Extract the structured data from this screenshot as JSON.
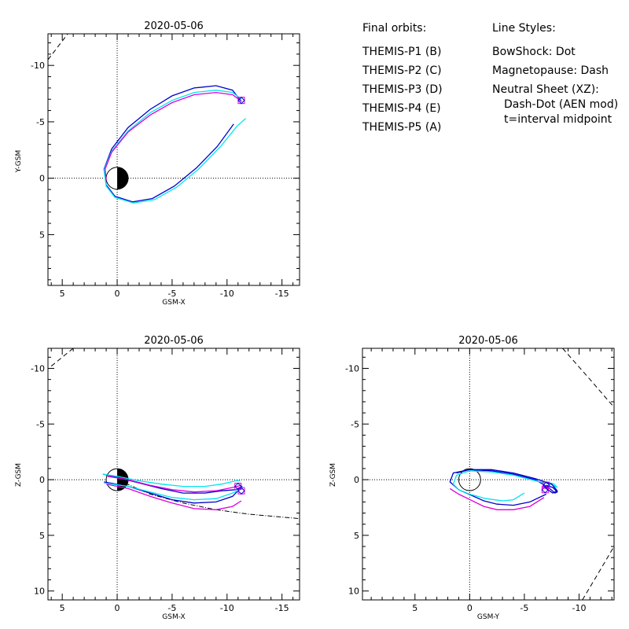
{
  "legend": {
    "orbits_title": "Final orbits:",
    "probes": [
      {
        "label": "THEMIS-P1 (B)",
        "color": "#ff0000"
      },
      {
        "label": "THEMIS-P2 (C)",
        "color": "#00dd00"
      },
      {
        "label": "THEMIS-P3 (D)",
        "color": "#00e5ee"
      },
      {
        "label": "THEMIS-P4 (E)",
        "color": "#0000cc"
      },
      {
        "label": "THEMIS-P5 (A)",
        "color": "#dd00dd"
      }
    ],
    "styles_title": "Line Styles:",
    "styles": [
      "BowShock: Dot",
      "Magnetopause: Dash",
      "Neutral Sheet (XZ):",
      "Dash-Dot (AEN mod)",
      "t=interval midpoint"
    ]
  },
  "chart_data": [
    {
      "type": "line",
      "title": "2020-05-06",
      "xlabel": "GSM-X",
      "ylabel": "Y-GSM",
      "xlim": [
        6.3,
        -16.6
      ],
      "ylim": [
        -12.8,
        9.5
      ],
      "xticks": [
        5,
        0,
        -5,
        -10,
        -15
      ],
      "xticklabels": [
        "5",
        "0",
        "-5",
        "-10",
        "-15"
      ],
      "yticks": [
        -10,
        -5,
        0,
        5
      ],
      "yticklabels": [
        "-10",
        "-5",
        "0",
        "5"
      ],
      "earth": "half-dark",
      "series": [
        {
          "color": "#0000cc",
          "points": [
            [
              -11.3,
              -6.8
            ],
            [
              -10.5,
              -7.8
            ],
            [
              -9,
              -8.2
            ],
            [
              -7,
              -8.0
            ],
            [
              -5,
              -7.3
            ],
            [
              -3,
              -6.1
            ],
            [
              -1,
              -4.5
            ],
            [
              0.5,
              -2.6
            ],
            [
              1.2,
              -0.8
            ],
            [
              1.0,
              0.6
            ],
            [
              0.2,
              1.6
            ],
            [
              -1.4,
              2.1
            ],
            [
              -3.2,
              1.8
            ],
            [
              -5.2,
              0.7
            ],
            [
              -7.2,
              -0.9
            ],
            [
              -9.1,
              -2.8
            ],
            [
              -10.6,
              -4.8
            ]
          ]
        },
        {
          "color": "#00e5ee",
          "points": [
            [
              -11.3,
              -7.0
            ],
            [
              -10.5,
              -7.6
            ],
            [
              -9,
              -7.8
            ],
            [
              -7,
              -7.6
            ],
            [
              -5,
              -6.9
            ],
            [
              -3,
              -5.8
            ],
            [
              -1,
              -4.2
            ],
            [
              0.5,
              -2.4
            ],
            [
              1.2,
              -0.7
            ],
            [
              1.0,
              0.7
            ],
            [
              0.2,
              1.7
            ],
            [
              -1.5,
              2.2
            ],
            [
              -3.4,
              1.9
            ],
            [
              -5.4,
              0.8
            ],
            [
              -7.4,
              -0.8
            ],
            [
              -9.4,
              -2.8
            ],
            [
              -10.9,
              -4.6
            ],
            [
              -11.7,
              -5.3
            ]
          ]
        },
        {
          "color": "#dd00dd",
          "points": [
            [
              -11.2,
              -6.9
            ],
            [
              -10.5,
              -7.4
            ],
            [
              -9,
              -7.6
            ],
            [
              -7,
              -7.4
            ],
            [
              -5,
              -6.7
            ],
            [
              -3,
              -5.6
            ],
            [
              -1,
              -4.1
            ],
            [
              0.5,
              -2.3
            ],
            [
              1.1,
              -0.8
            ],
            [
              1.0,
              0.2
            ]
          ]
        }
      ],
      "markers": [
        {
          "x": -11.3,
          "y": -6.9
        }
      ],
      "magnetopause": [
        [
          6.3,
          -10.5
        ],
        [
          4.5,
          -12.8
        ]
      ]
    },
    {
      "type": "line",
      "title": "2020-05-06",
      "xlabel": "GSM-X",
      "ylabel": "Z-GSM",
      "xlim": [
        6.3,
        -16.6
      ],
      "ylim": [
        -11.8,
        10.8
      ],
      "xticks": [
        5,
        0,
        -5,
        -10,
        -15
      ],
      "xticklabels": [
        "5",
        "0",
        "-5",
        "-10",
        "-15"
      ],
      "yticks": [
        10,
        5,
        0,
        -5,
        -10
      ],
      "yticklabels": [
        "10",
        "5",
        "0",
        "-5",
        "-10"
      ],
      "earth": "half-dark",
      "series": [
        {
          "color": "#dd00dd",
          "points": [
            [
              1.0,
              0.4
            ],
            [
              -1,
              0.8
            ],
            [
              -3,
              1.5
            ],
            [
              -5,
              2.1
            ],
            [
              -7,
              2.6
            ],
            [
              -9,
              2.7
            ],
            [
              -10.5,
              2.4
            ],
            [
              -11.3,
              1.9
            ]
          ]
        },
        {
          "color": "#0000cc",
          "points": [
            [
              1.2,
              0.2
            ],
            [
              -1,
              0.6
            ],
            [
              -3,
              1.2
            ],
            [
              -5,
              1.8
            ],
            [
              -7,
              2.1
            ],
            [
              -9,
              2.0
            ],
            [
              -10.5,
              1.5
            ],
            [
              -11.0,
              1.0
            ]
          ]
        },
        {
          "color": "#00e5ee",
          "points": [
            [
              1.2,
              0.3
            ],
            [
              -1,
              0.6
            ],
            [
              -3,
              1.1
            ],
            [
              -5,
              1.6
            ],
            [
              -7,
              1.8
            ],
            [
              -9,
              1.7
            ],
            [
              -10.5,
              1.2
            ],
            [
              -11.4,
              0.8
            ]
          ]
        },
        {
          "color": "#0000cc",
          "points": [
            [
              1.3,
              -0.5
            ],
            [
              0,
              -0.2
            ],
            [
              -2,
              0.3
            ],
            [
              -4,
              0.8
            ],
            [
              -6,
              1.2
            ],
            [
              -8,
              1.2
            ],
            [
              -9.5,
              1.0
            ],
            [
              -10.8,
              0.9
            ],
            [
              -11.4,
              0.6
            ]
          ]
        },
        {
          "color": "#00e5ee",
          "points": [
            [
              1.3,
              -0.5
            ],
            [
              0,
              -0.3
            ],
            [
              -2,
              0.1
            ],
            [
              -4,
              0.4
            ],
            [
              -6,
              0.6
            ],
            [
              -8,
              0.6
            ],
            [
              -9.5,
              0.4
            ],
            [
              -10.8,
              0.1
            ],
            [
              -11.2,
              0.1
            ]
          ]
        },
        {
          "color": "#dd00dd",
          "points": [
            [
              0.9,
              -0.3
            ],
            [
              -1,
              0
            ],
            [
              -3,
              0.5
            ],
            [
              -5,
              0.9
            ],
            [
              -7,
              1.1
            ],
            [
              -9,
              1.0
            ],
            [
              -10.5,
              0.7
            ],
            [
              -11.3,
              0.5
            ]
          ]
        }
      ],
      "markers": [
        {
          "x": -11.3,
          "y": 1.0
        },
        {
          "x": -11.0,
          "y": 0.6
        }
      ],
      "neutral_sheet": [
        [
          0,
          0
        ],
        [
          -3,
          1.3
        ],
        [
          -6,
          2.1
        ],
        [
          -9,
          2.7
        ],
        [
          -12,
          3.1
        ],
        [
          -16.6,
          3.5
        ]
      ],
      "magnetopause": [
        [
          6.0,
          -10.2
        ],
        [
          4.0,
          -11.8
        ]
      ]
    },
    {
      "type": "line",
      "title": "2020-05-06",
      "xlabel": "GSM-Y",
      "ylabel": "Z-GSM",
      "xlim": [
        9.8,
        -13.2
      ],
      "ylim": [
        -11.8,
        10.8
      ],
      "xticks": [
        5,
        0,
        -5,
        -10
      ],
      "xticklabels": [
        "5",
        "0",
        "-5",
        "-10"
      ],
      "yticks": [
        10,
        5,
        0,
        -5,
        -10
      ],
      "yticklabels": [
        "10",
        "5",
        "0",
        "-5",
        "-10"
      ],
      "earth": "open",
      "series": [
        {
          "color": "#dd00dd",
          "points": [
            [
              -6.8,
              1.6
            ],
            [
              -5.5,
              2.4
            ],
            [
              -4,
              2.7
            ],
            [
              -2.5,
              2.7
            ],
            [
              -1.3,
              2.4
            ],
            [
              1.0,
              1.3
            ],
            [
              1.8,
              0.8
            ]
          ]
        },
        {
          "color": "#0000cc",
          "points": [
            [
              -7.0,
              1.3
            ],
            [
              -5.5,
              2.0
            ],
            [
              -4,
              2.3
            ],
            [
              -2.5,
              2.2
            ],
            [
              -1.3,
              1.9
            ],
            [
              1.0,
              0.9
            ],
            [
              1.8,
              0.2
            ],
            [
              1.5,
              -0.6
            ],
            [
              0,
              -0.9
            ],
            [
              -2,
              -0.8
            ],
            [
              -4,
              -0.5
            ],
            [
              -6,
              0
            ],
            [
              -7.2,
              0.7
            ],
            [
              -7.8,
              1.2
            ],
            [
              -8.0,
              1.1
            ],
            [
              -7.6,
              0.7
            ],
            [
              -7.0,
              0.5
            ]
          ]
        },
        {
          "color": "#00e5ee",
          "points": [
            [
              -5.0,
              1.2
            ],
            [
              -4,
              1.8
            ],
            [
              -3,
              1.9
            ],
            [
              -1.5,
              1.7
            ],
            [
              0,
              1.3
            ],
            [
              1.0,
              0.9
            ],
            [
              1.5,
              0.4
            ],
            [
              1.2,
              -0.4
            ],
            [
              0,
              -0.8
            ],
            [
              -2,
              -0.7
            ],
            [
              -4,
              -0.4
            ],
            [
              -6,
              0.1
            ],
            [
              -7.4,
              0.4
            ],
            [
              -8.0,
              0.7
            ],
            [
              -7.7,
              0.4
            ],
            [
              -7.0,
              0.2
            ]
          ]
        },
        {
          "color": "#0000cc",
          "points": [
            [
              1.2,
              -0.6
            ],
            [
              0,
              -0.9
            ],
            [
              -2,
              -0.9
            ],
            [
              -4,
              -0.6
            ],
            [
              -6,
              -0.1
            ],
            [
              -7.5,
              0.4
            ],
            [
              -8.0,
              1.0
            ],
            [
              -7.6,
              1.2
            ],
            [
              -7.0,
              0.8
            ]
          ]
        }
      ],
      "markers": [
        {
          "x": -6.9,
          "y": 0.9
        },
        {
          "x": -7.0,
          "y": 0.5
        }
      ],
      "magnetopause": [
        [
          -10.3,
          10.8
        ],
        [
          -12.0,
          8.0
        ],
        [
          -13.2,
          6.0
        ]
      ],
      "magnetopause_lower": [
        [
          -8.5,
          -11.8
        ],
        [
          -11.0,
          -9.0
        ],
        [
          -13.2,
          -6.5
        ]
      ]
    }
  ]
}
